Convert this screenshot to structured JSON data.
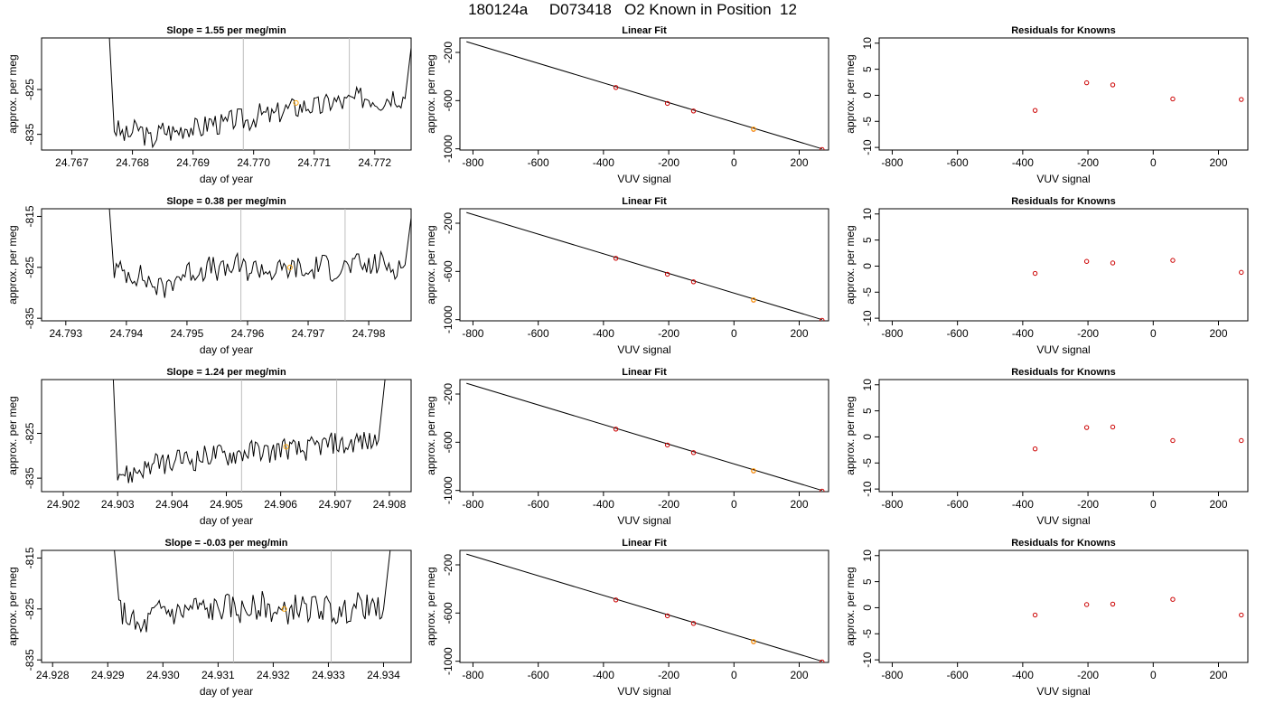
{
  "page_title": "180124a     D073418   O2 Known in Position  12",
  "chart_data": [
    {
      "id": "r1-trace",
      "type": "line",
      "title": "Slope =  1.55  per meg/min",
      "xlabel": "day of year",
      "ylabel": "approx. per meg",
      "xticks": [
        "24.767",
        "24.768",
        "24.769",
        "24.770",
        "24.771",
        "24.772"
      ],
      "yticks": [
        "-825",
        "-835"
      ],
      "xlim": [
        24.7665,
        24.7726
      ],
      "ylim": [
        -838.5,
        -813.5
      ],
      "vlines": [
        24.76983,
        24.77158
      ],
      "marker": {
        "x": 24.7707,
        "y": -828,
        "color": "#FFA500"
      },
      "x": [
        24.7677,
        24.7679,
        24.7681,
        24.7683,
        24.7685,
        24.7687,
        24.7689,
        24.7691,
        24.7693,
        24.7695,
        24.7697,
        24.7699,
        24.7701,
        24.7703,
        24.7705,
        24.7707,
        24.7709,
        24.7711,
        24.7713,
        24.7715,
        24.7717,
        24.7719,
        24.7721,
        24.7723,
        24.7725
      ],
      "y": [
        -833.5,
        -835.5,
        -833.5,
        -836.5,
        -834.0,
        -834.5,
        -833.0,
        -834.0,
        -832.0,
        -833.0,
        -831.5,
        -832.0,
        -830.5,
        -831.0,
        -829.5,
        -829.0,
        -828.5,
        -829.0,
        -827.5,
        -828.0,
        -827.0,
        -826.5,
        -827.5,
        -826.0,
        -827.0
      ],
      "head": -813.5,
      "tail": -813.5,
      "amp": 2.6
    },
    {
      "id": "r1-fit",
      "type": "line",
      "title": "Linear Fit",
      "xlabel": "VUV signal",
      "ylabel": "approx. per meg",
      "xticks": [
        "-800",
        "-600",
        "-400",
        "-200",
        "0",
        "200"
      ],
      "yticks": [
        "-200",
        "-600",
        "-1000"
      ],
      "xlim": [
        -840,
        290
      ],
      "ylim": [
        -1010,
        -80
      ],
      "line": [
        [
          -820,
          -111
        ],
        [
          270,
          -1000
        ]
      ],
      "points": {
        "x": [
          -362,
          -204,
          -124,
          60,
          270
        ],
        "y": [
          -491,
          -623,
          -686,
          -838,
          -1006
        ],
        "color": "#CC0000"
      },
      "highlight": {
        "x": 60,
        "y": -836,
        "color": "#FFA500"
      }
    },
    {
      "id": "r1-res",
      "type": "scatter",
      "title": "Residuals for Knowns",
      "xlabel": "VUV signal",
      "ylabel": "approx. per meg",
      "xticks": [
        "-800",
        "-600",
        "-400",
        "-200",
        "0",
        "200"
      ],
      "yticks": [
        "-10",
        "-5",
        "0",
        "5",
        "10"
      ],
      "xlim": [
        -840,
        290
      ],
      "ylim": [
        -10.5,
        11
      ],
      "x": [
        -362,
        -204,
        -124,
        60,
        270
      ],
      "y": [
        -2.9,
        2.4,
        2.0,
        -0.7,
        -0.8
      ],
      "color": "#CC0000"
    },
    {
      "id": "r2-trace",
      "type": "line",
      "title": "Slope =  0.38  per meg/min",
      "xlabel": "day of year",
      "ylabel": "approx. per meg",
      "xticks": [
        "24.793",
        "24.794",
        "24.795",
        "24.796",
        "24.797",
        "24.798"
      ],
      "yticks": [
        "-815",
        "-825",
        "-835"
      ],
      "xlim": [
        24.7926,
        24.7987
      ],
      "ylim": [
        -835.5,
        -813.5
      ],
      "vlines": [
        24.79589,
        24.79761
      ],
      "marker": {
        "x": 24.7967,
        "y": -825,
        "color": "#FFA500"
      },
      "x": [
        24.7938,
        24.794,
        24.7942,
        24.7944,
        24.7946,
        24.7948,
        24.795,
        24.7952,
        24.7954,
        24.7956,
        24.7958,
        24.796,
        24.7962,
        24.7964,
        24.7966,
        24.7968,
        24.797,
        24.7972,
        24.7974,
        24.7976,
        24.7978,
        24.798,
        24.7982,
        24.7984,
        24.7986
      ],
      "y": [
        -825.5,
        -826.0,
        -826.5,
        -828.0,
        -829.5,
        -827.0,
        -826.0,
        -825.5,
        -825.0,
        -826.0,
        -824.5,
        -825.5,
        -825.0,
        -826.0,
        -825.5,
        -825.0,
        -826.5,
        -824.0,
        -825.5,
        -825.0,
        -824.5,
        -825.0,
        -824.0,
        -825.0,
        -824.5
      ],
      "head": -813.5,
      "tail": -813.5,
      "amp": 2.4
    },
    {
      "id": "r2-fit",
      "type": "line",
      "title": "Linear Fit",
      "xlabel": "VUV signal",
      "ylabel": "approx. per meg",
      "xticks": [
        "-800",
        "-600",
        "-400",
        "-200",
        "0",
        "200"
      ],
      "yticks": [
        "-200",
        "-600",
        "-1000"
      ],
      "xlim": [
        -840,
        290
      ],
      "ylim": [
        -1010,
        -80
      ],
      "line": [
        [
          -820,
          -111
        ],
        [
          270,
          -1000
        ]
      ],
      "points": {
        "x": [
          -362,
          -204,
          -124,
          60,
          270
        ],
        "y": [
          -491,
          -623,
          -686,
          -838,
          -1006
        ],
        "color": "#CC0000"
      },
      "highlight": {
        "x": 60,
        "y": -836,
        "color": "#FFA500"
      }
    },
    {
      "id": "r2-res",
      "type": "scatter",
      "title": "Residuals for Knowns",
      "xlabel": "VUV signal",
      "ylabel": "approx. per meg",
      "xticks": [
        "-800",
        "-600",
        "-400",
        "-200",
        "0",
        "200"
      ],
      "yticks": [
        "-10",
        "-5",
        "0",
        "5",
        "10"
      ],
      "xlim": [
        -840,
        290
      ],
      "ylim": [
        -10.5,
        11
      ],
      "x": [
        -362,
        -204,
        -124,
        60,
        270
      ],
      "y": [
        -1.4,
        0.9,
        0.6,
        1.1,
        -1.2
      ],
      "color": "#CC0000"
    },
    {
      "id": "r3-trace",
      "type": "line",
      "title": "Slope =  1.24  per meg/min",
      "xlabel": "day of year",
      "ylabel": "approx. per meg",
      "xticks": [
        "24.902",
        "24.903",
        "24.904",
        "24.905",
        "24.906",
        "24.907",
        "24.908"
      ],
      "yticks": [
        "-825",
        "-835"
      ],
      "xlim": [
        24.9016,
        24.9084
      ],
      "ylim": [
        -838,
        -813
      ],
      "vlines": [
        24.90528,
        24.90703
      ],
      "marker": {
        "x": 24.9061,
        "y": -828,
        "color": "#FFA500"
      },
      "x": [
        24.903,
        24.9032,
        24.9034,
        24.9036,
        24.9038,
        24.904,
        24.9042,
        24.9044,
        24.9046,
        24.9048,
        24.905,
        24.9052,
        24.9054,
        24.9056,
        24.9058,
        24.906,
        24.9062,
        24.9064,
        24.9066,
        24.9068,
        24.907,
        24.9072,
        24.9074,
        24.9076,
        24.9078
      ],
      "y": [
        -833.0,
        -834.5,
        -833.0,
        -832.5,
        -831.5,
        -832.0,
        -830.5,
        -831.0,
        -830.0,
        -829.5,
        -830.0,
        -829.5,
        -829.0,
        -828.5,
        -829.5,
        -828.0,
        -828.5,
        -829.0,
        -828.0,
        -827.5,
        -827.0,
        -828.0,
        -826.5,
        -827.0,
        -826.5
      ],
      "head": -813,
      "tail": -813,
      "amp": 2.5
    },
    {
      "id": "r3-fit",
      "type": "line",
      "title": "Linear Fit",
      "xlabel": "VUV signal",
      "ylabel": "approx. per meg",
      "xticks": [
        "-800",
        "-600",
        "-400",
        "-200",
        "0",
        "200"
      ],
      "yticks": [
        "-200",
        "-600",
        "-1000"
      ],
      "xlim": [
        -840,
        290
      ],
      "ylim": [
        -1010,
        -80
      ],
      "line": [
        [
          -820,
          -111
        ],
        [
          270,
          -1000
        ]
      ],
      "points": {
        "x": [
          -362,
          -204,
          -124,
          60,
          270
        ],
        "y": [
          -491,
          -623,
          -686,
          -838,
          -1006
        ],
        "color": "#CC0000"
      },
      "highlight": {
        "x": 60,
        "y": -836,
        "color": "#FFA500"
      }
    },
    {
      "id": "r3-res",
      "type": "scatter",
      "title": "Residuals for Knowns",
      "xlabel": "VUV signal",
      "ylabel": "approx. per meg",
      "xticks": [
        "-800",
        "-600",
        "-400",
        "-200",
        "0",
        "200"
      ],
      "yticks": [
        "-10",
        "-5",
        "0",
        "5",
        "10"
      ],
      "xlim": [
        -840,
        290
      ],
      "ylim": [
        -10.5,
        11
      ],
      "x": [
        -362,
        -204,
        -124,
        60,
        270
      ],
      "y": [
        -2.3,
        1.8,
        1.9,
        -0.7,
        -0.7
      ],
      "color": "#CC0000"
    },
    {
      "id": "r4-trace",
      "type": "line",
      "title": "Slope =  -0.03  per meg/min",
      "xlabel": "day of year",
      "ylabel": "approx. per meg",
      "xticks": [
        "24.928",
        "24.929",
        "24.930",
        "24.931",
        "24.932",
        "24.933",
        "24.934"
      ],
      "yticks": [
        "-815",
        "-825",
        "-835"
      ],
      "xlim": [
        24.9278,
        24.9345
      ],
      "ylim": [
        -835.5,
        -813.5
      ],
      "vlines": [
        24.93128,
        24.93305
      ],
      "marker": {
        "x": 24.9322,
        "y": -825,
        "color": "#FFA500"
      },
      "x": [
        24.9292,
        24.9294,
        24.9296,
        24.9298,
        24.93,
        24.9302,
        24.9304,
        24.9306,
        24.9308,
        24.931,
        24.9312,
        24.9314,
        24.9316,
        24.9318,
        24.932,
        24.9322,
        24.9324,
        24.9326,
        24.9328,
        24.933,
        24.9332,
        24.9334,
        24.9336,
        24.9338,
        24.934
      ],
      "y": [
        -825.0,
        -827.0,
        -829.5,
        -826.5,
        -825.0,
        -826.0,
        -825.5,
        -824.5,
        -825.5,
        -825.0,
        -824.5,
        -825.5,
        -825.0,
        -824.0,
        -825.5,
        -826.0,
        -824.5,
        -825.0,
        -824.5,
        -825.0,
        -826.5,
        -825.0,
        -824.0,
        -825.5,
        -825.0
      ],
      "head": -813.5,
      "tail": -813.5,
      "amp": 2.6
    },
    {
      "id": "r4-fit",
      "type": "line",
      "title": "Linear Fit",
      "xlabel": "VUV signal",
      "ylabel": "approx. per meg",
      "xticks": [
        "-800",
        "-600",
        "-400",
        "-200",
        "0",
        "200"
      ],
      "yticks": [
        "-200",
        "-600",
        "-1000"
      ],
      "xlim": [
        -840,
        290
      ],
      "ylim": [
        -1010,
        -80
      ],
      "line": [
        [
          -820,
          -111
        ],
        [
          270,
          -1000
        ]
      ],
      "points": {
        "x": [
          -362,
          -204,
          -124,
          60,
          270
        ],
        "y": [
          -491,
          -623,
          -686,
          -838,
          -1006
        ],
        "color": "#CC0000"
      },
      "highlight": {
        "x": 60,
        "y": -836,
        "color": "#FFA500"
      }
    },
    {
      "id": "r4-res",
      "type": "scatter",
      "title": "Residuals for Knowns",
      "xlabel": "VUV signal",
      "ylabel": "approx. per meg",
      "xticks": [
        "-800",
        "-600",
        "-400",
        "-200",
        "0",
        "200"
      ],
      "yticks": [
        "-10",
        "-5",
        "0",
        "5",
        "10"
      ],
      "xlim": [
        -840,
        290
      ],
      "ylim": [
        -10.5,
        11
      ],
      "x": [
        -362,
        -204,
        -124,
        60,
        270
      ],
      "y": [
        -1.4,
        0.6,
        0.7,
        1.6,
        -1.4
      ],
      "color": "#CC0000"
    }
  ]
}
